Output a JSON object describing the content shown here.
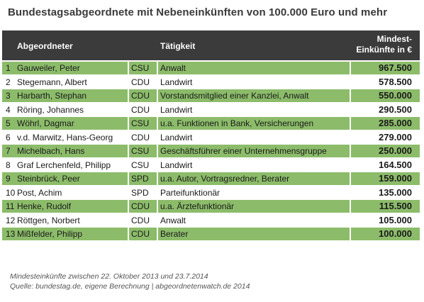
{
  "title": "Bundestagsabgeordnete mit Nebeneinkünften von 100.000 Euro und mehr",
  "header": {
    "name": "Abgeordneter",
    "job": "Tätigkeit",
    "income_line1": "Mindest-",
    "income_line2": "Einkünfte in €"
  },
  "rows": [
    {
      "nr": "1",
      "name": "Gauweiler, Peter",
      "party": "CSU",
      "job": "Anwalt",
      "income": "967.500"
    },
    {
      "nr": "2",
      "name": "Stegemann, Albert",
      "party": "CDU",
      "job": "Landwirt",
      "income": "578.500"
    },
    {
      "nr": "3",
      "name": "Harbarth, Stephan",
      "party": "CDU",
      "job": "Vorstandsmitglied einer Kanzlei, Anwalt",
      "income": "550.000"
    },
    {
      "nr": "4",
      "name": "Röring, Johannes",
      "party": "CDU",
      "job": "Landwirt",
      "income": "290.500"
    },
    {
      "nr": "5",
      "name": "Wöhrl, Dagmar",
      "party": "CSU",
      "job": "u.a. Funktionen in Bank, Versicherungen",
      "income": "285.000"
    },
    {
      "nr": "6",
      "name": "v.d. Marwitz, Hans-Georg",
      "party": "CDU",
      "job": "Landwirt",
      "income": "279.000"
    },
    {
      "nr": "7",
      "name": "Michelbach, Hans",
      "party": "CSU",
      "job": "Geschäftsführer einer Unternehmensgruppe",
      "income": "250.000"
    },
    {
      "nr": "8",
      "name": "Graf  Lerchenfeld, Philipp",
      "party": "CSU",
      "job": "Landwirt",
      "income": "164.500"
    },
    {
      "nr": "9",
      "name": "Steinbrück, Peer",
      "party": "SPD",
      "job": "u.a. Autor, Vortragsredner, Berater",
      "income": "159.000"
    },
    {
      "nr": "10",
      "name": "Post, Achim",
      "party": "SPD",
      "job": "Parteifunktionär",
      "income": "135.000"
    },
    {
      "nr": "11",
      "name": "Henke, Rudolf",
      "party": "CDU",
      "job": "u.a. Ärztefunktionär",
      "income": "115.500"
    },
    {
      "nr": "12",
      "name": "Röttgen, Norbert",
      "party": "CDU",
      "job": "Anwalt",
      "income": "105.000"
    },
    {
      "nr": "13",
      "name": "Mißfelder, Philipp",
      "party": "CDU",
      "job": "Berater",
      "income": "100.000"
    }
  ],
  "footer": {
    "line1": "Mindesteinkünfte zwischen 22. Oktober 2013 und 23.7.2014",
    "line2": "Quelle: bundestag.de, eigene Berechnung  |  abgeordnetenwatch.de 2014"
  },
  "colors": {
    "header_bg": "#3b3b3b",
    "row_green": "#8cbc6a",
    "row_white": "#ffffff"
  }
}
